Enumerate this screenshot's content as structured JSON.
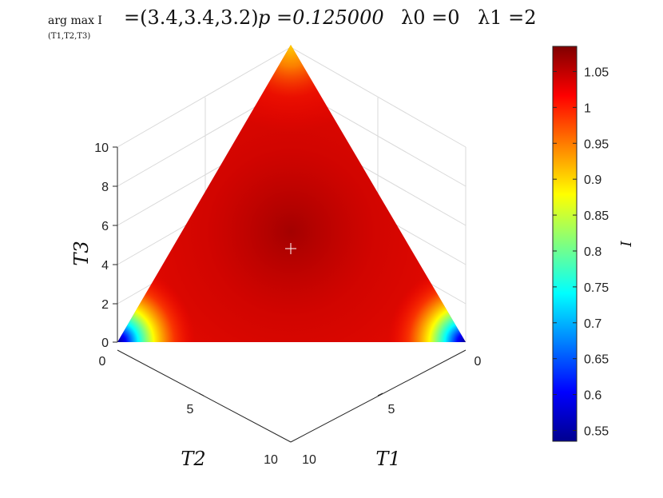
{
  "chart_data": {
    "type": "heatmap",
    "projection": "ternary simplex T1 + T2 + T3 = 10, viewed as 3D axes",
    "title": {
      "prefix": "arg max I",
      "subscript": "(T1,T2,T3)",
      "argmax": "=(3.4,3.4,3.2)",
      "p": "p =0.125000",
      "lambda0": "λ0 =0",
      "lambda1": "λ1 =2"
    },
    "axes": {
      "T1": {
        "label": "T1",
        "ticks": [
          "0",
          "5",
          "10"
        ],
        "range": [
          0,
          10
        ]
      },
      "T2": {
        "label": "T2",
        "ticks": [
          "0",
          "5",
          "10"
        ],
        "range": [
          0,
          10
        ]
      },
      "T3": {
        "label": "T3",
        "ticks": [
          "0",
          "2",
          "4",
          "6",
          "8",
          "10"
        ],
        "range": [
          0,
          10
        ]
      }
    },
    "argmax_point": {
      "T1": 3.4,
      "T2": 3.4,
      "T3": 3.2,
      "marker": "+"
    },
    "samples": [
      {
        "T1": 3.4,
        "T2": 3.4,
        "T3": 3.2,
        "I": 1.085
      },
      {
        "T1": 0,
        "T2": 0,
        "T3": 10,
        "I": 0.94
      },
      {
        "T1": 0,
        "T2": 10,
        "T3": 0,
        "I": 0.55
      },
      {
        "T1": 10,
        "T2": 0,
        "T3": 0,
        "I": 0.55
      },
      {
        "T1": 5,
        "T2": 5,
        "T3": 0,
        "I": 1.02
      },
      {
        "T1": 0,
        "T2": 5,
        "T3": 5,
        "I": 1.03
      },
      {
        "T1": 5,
        "T2": 0,
        "T3": 5,
        "I": 1.03
      }
    ],
    "colorbar": {
      "label": "I",
      "colormap": "jet",
      "range": [
        0.535,
        1.085
      ],
      "ticks": [
        "0.55",
        "0.6",
        "0.65",
        "0.7",
        "0.75",
        "0.8",
        "0.85",
        "0.9",
        "0.95",
        "1",
        "1.05"
      ]
    },
    "grid": true
  }
}
